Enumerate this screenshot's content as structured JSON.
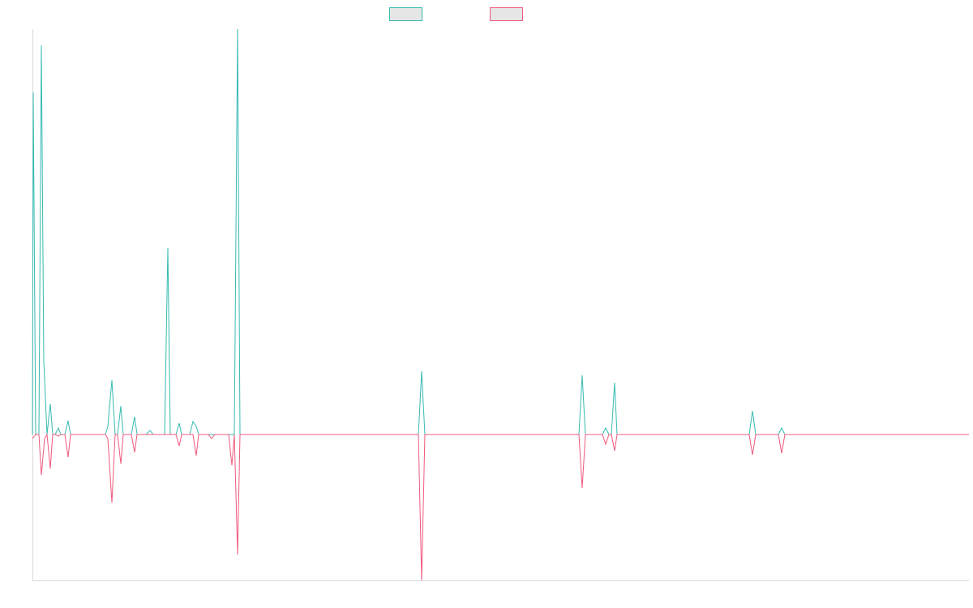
{
  "chart_data": {
    "type": "line",
    "xlim": [
      0,
      1155
    ],
    "ylim": [
      -180,
      500
    ],
    "series": [
      {
        "color": "#36bab1",
        "x": [
          0,
          1,
          4,
          8,
          11,
          14,
          18,
          22,
          25,
          28,
          32,
          35,
          40,
          44,
          47,
          90,
          93,
          98,
          102,
          105,
          109,
          112,
          122,
          126,
          129,
          140,
          145,
          149,
          163,
          167,
          170,
          177,
          181,
          184,
          194,
          198,
          202,
          205,
          249,
          253,
          256,
          476,
          480,
          484,
          674,
          678,
          682,
          703,
          707,
          711,
          714,
          718,
          721,
          884,
          888,
          892,
          920,
          924,
          928,
          1155
        ],
        "values": [
          0,
          422,
          0,
          0,
          480,
          90,
          0,
          38,
          0,
          0,
          8,
          0,
          0,
          17,
          0,
          0,
          10,
          67,
          0,
          0,
          35,
          0,
          0,
          22,
          0,
          0,
          5,
          0,
          0,
          230,
          0,
          0,
          14,
          0,
          0,
          16,
          10,
          0,
          0,
          500,
          0,
          0,
          78,
          0,
          0,
          73,
          0,
          0,
          8,
          0,
          0,
          64,
          0,
          0,
          29,
          0,
          0,
          8,
          0,
          0
        ]
      },
      {
        "color": "#f0587c",
        "x": [
          0,
          4,
          8,
          11,
          15,
          18,
          22,
          25,
          29,
          32,
          35,
          40,
          44,
          47,
          90,
          93,
          98,
          102,
          105,
          109,
          112,
          122,
          126,
          129,
          177,
          181,
          184,
          198,
          202,
          205,
          217,
          221,
          225,
          242,
          246,
          249,
          253,
          256,
          476,
          480,
          484,
          674,
          678,
          682,
          703,
          707,
          711,
          714,
          718,
          721,
          884,
          888,
          892,
          920,
          924,
          928,
          1155
        ],
        "values": [
          -5,
          0,
          0,
          -50,
          -5,
          0,
          -42,
          0,
          0,
          -2,
          0,
          0,
          -28,
          0,
          0,
          -5,
          -84,
          0,
          0,
          -36,
          0,
          0,
          -22,
          0,
          0,
          -14,
          0,
          0,
          -26,
          0,
          0,
          -5,
          0,
          0,
          -38,
          0,
          -148,
          0,
          0,
          -180,
          0,
          0,
          -66,
          0,
          0,
          -12,
          0,
          0,
          -20,
          0,
          0,
          -25,
          0,
          0,
          -23,
          0,
          0
        ]
      }
    ]
  }
}
